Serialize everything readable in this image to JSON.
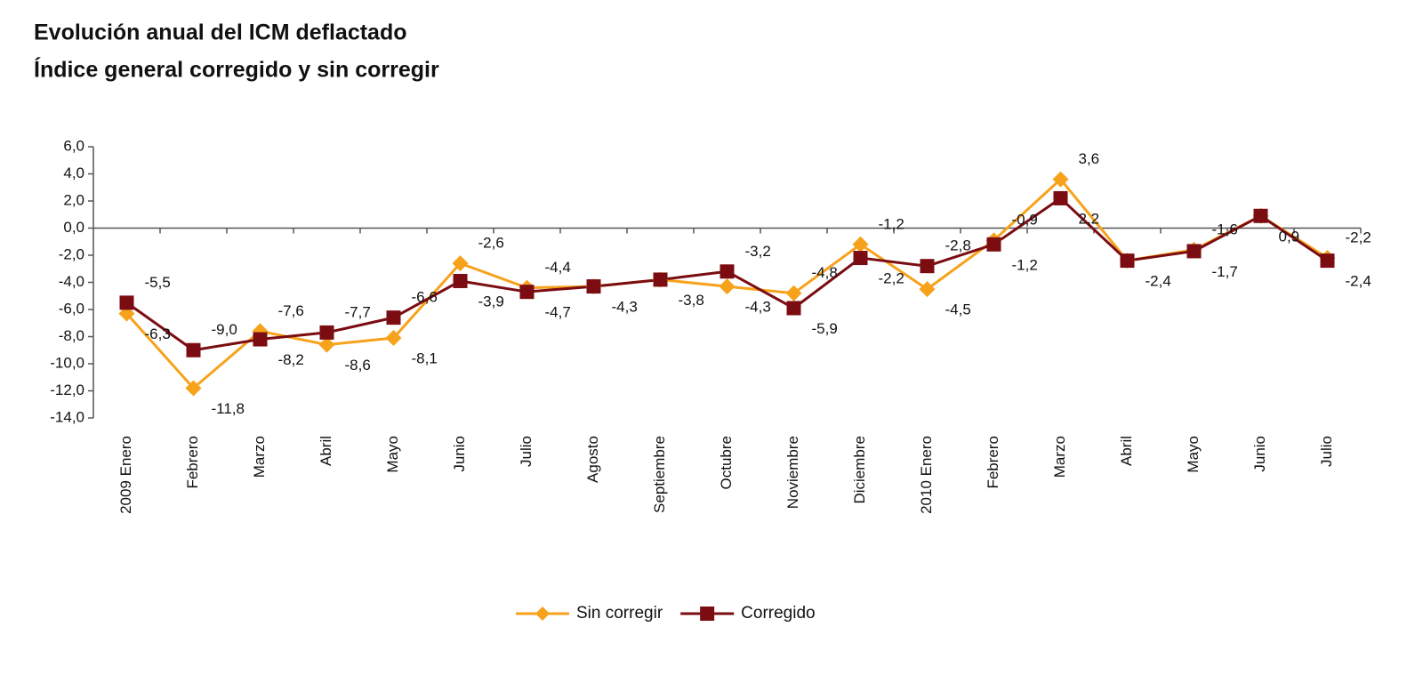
{
  "chart_data": {
    "type": "line",
    "title": "Evolución anual del ICM deflactado",
    "subtitle": "Índice general corregido y sin corregir",
    "categories": [
      "2009 Enero",
      "Febrero",
      "Marzo",
      "Abril",
      "Mayo",
      "Junio",
      "Julio",
      "Agosto",
      "Septiembre",
      "Octubre",
      "Noviembre",
      "Diciembre",
      "2010 Enero",
      "Febrero",
      "Marzo",
      "Abril",
      "Mayo",
      "Junio",
      "Julio"
    ],
    "series": [
      {
        "name": "Sin corregir",
        "color": "#f7a21b",
        "marker": "diamond",
        "values": [
          -6.3,
          -11.8,
          -7.6,
          -8.6,
          -8.1,
          -2.6,
          -4.4,
          -4.3,
          -3.8,
          -4.3,
          -4.8,
          -1.2,
          -4.5,
          -0.9,
          3.6,
          -2.4,
          -1.6,
          0.9,
          -2.2
        ],
        "value_labels": [
          "-6,3",
          "-11,8",
          "-7,6",
          "-8,6",
          "-8,1",
          "-2,6",
          "-4,4",
          null,
          null,
          "-4,3",
          "-4,8",
          "-1,2",
          "-4,5",
          "-0,9",
          "3,6",
          null,
          "-1,6",
          null,
          "-2,2"
        ]
      },
      {
        "name": "Corregido",
        "color": "#7b0d12",
        "marker": "square",
        "values": [
          -5.5,
          -9.0,
          -8.2,
          -7.7,
          -6.6,
          -3.9,
          -4.7,
          -4.3,
          -3.8,
          -3.2,
          -5.9,
          -2.2,
          -2.8,
          -1.2,
          2.2,
          -2.4,
          -1.7,
          0.9,
          -2.4
        ],
        "value_labels": [
          "-5,5",
          "-9,0",
          "-8,2",
          "-7,7",
          "-6,6",
          "-3,9",
          "-4,7",
          "-4,3",
          "-3,8",
          "-3,2",
          "-5,9",
          "-2,2",
          "-2,8",
          "-1,2",
          "2,2",
          "-2,4",
          "-1,7",
          "0,9",
          "-2,4"
        ]
      }
    ],
    "ylim": [
      -14,
      6
    ],
    "yticks": [
      {
        "value": 6,
        "label": "6,0"
      },
      {
        "value": 4,
        "label": "4,0"
      },
      {
        "value": 2,
        "label": "2,0"
      },
      {
        "value": 0,
        "label": "0,0"
      },
      {
        "value": -2,
        "label": "-2,0"
      },
      {
        "value": -4,
        "label": "-4,0"
      },
      {
        "value": -6,
        "label": "-6,0"
      },
      {
        "value": -8,
        "label": "-8,0"
      },
      {
        "value": -10,
        "label": "-10,0"
      },
      {
        "value": -12,
        "label": "-12,0"
      },
      {
        "value": -14,
        "label": "-14,0"
      }
    ],
    "legend": "bottom"
  }
}
